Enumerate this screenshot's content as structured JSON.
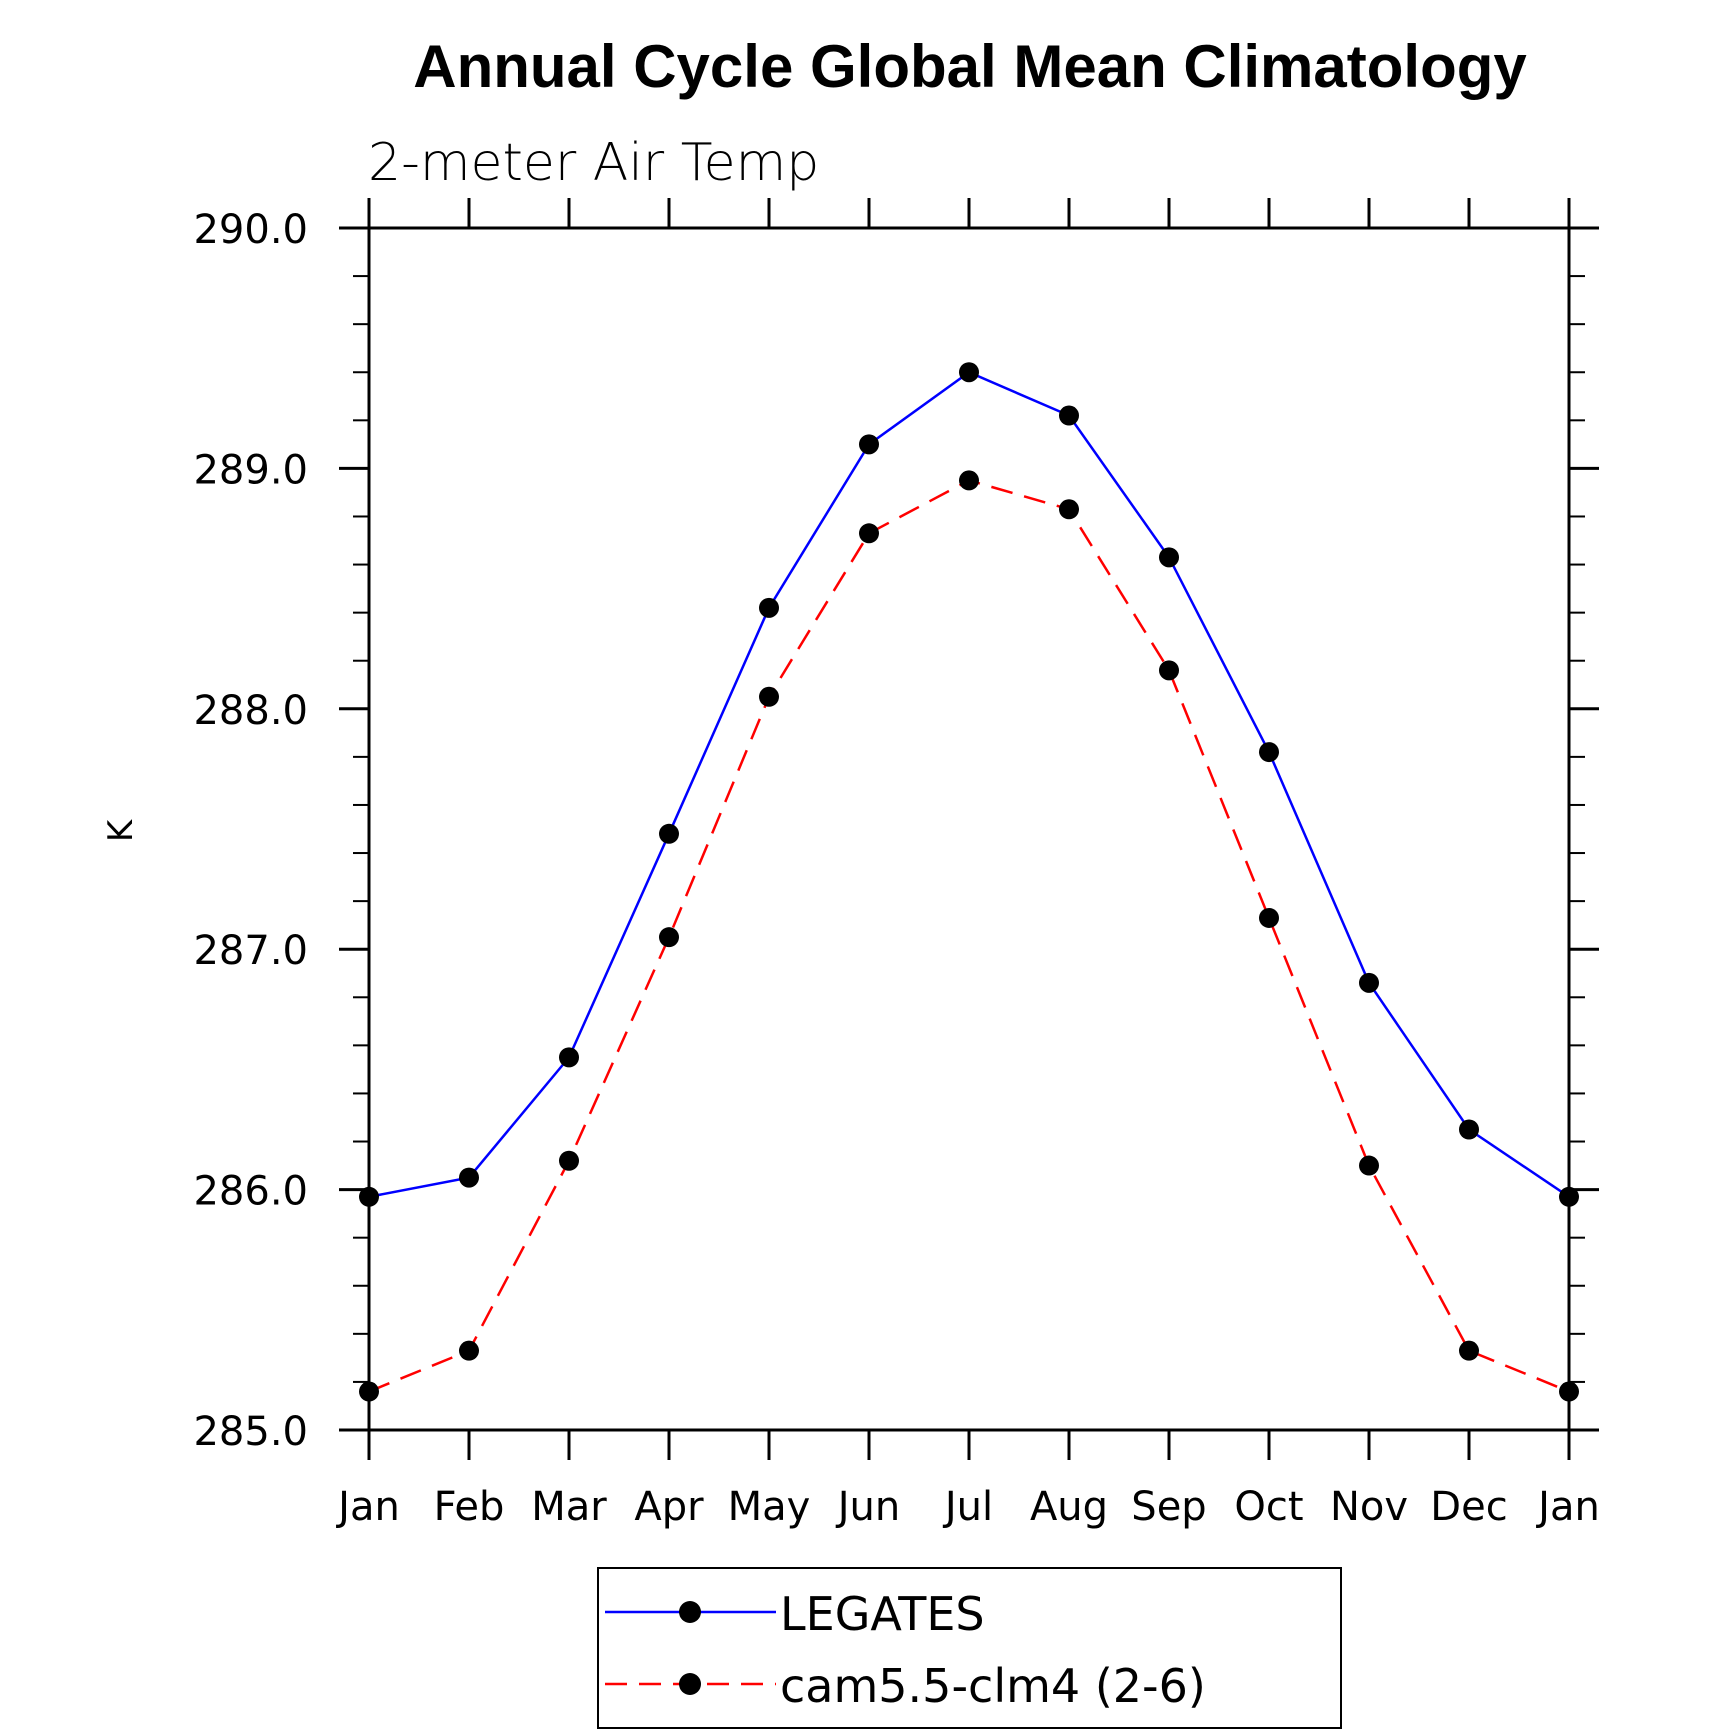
{
  "chart_data": {
    "type": "line",
    "title": "Annual Cycle Global Mean Climatology",
    "subtitle": "2-meter Air Temp",
    "xlabel": "",
    "ylabel": "K",
    "categories": [
      "Jan",
      "Feb",
      "Mar",
      "Apr",
      "May",
      "Jun",
      "Jul",
      "Aug",
      "Sep",
      "Oct",
      "Nov",
      "Dec",
      "Jan"
    ],
    "ylim": [
      285.0,
      290.0
    ],
    "yticks": [
      "285.0",
      "286.0",
      "287.0",
      "288.0",
      "289.0",
      "290.0"
    ],
    "y_minor_step": 0.2,
    "grid": false,
    "legend_position": "bottom-center",
    "series": [
      {
        "name": "LEGATES",
        "color": "#0000ff",
        "line_style": "solid",
        "marker": "filled-circle",
        "values": [
          285.97,
          286.05,
          286.55,
          287.48,
          288.42,
          289.1,
          289.4,
          289.22,
          288.63,
          287.82,
          286.86,
          286.25,
          285.97
        ]
      },
      {
        "name": "cam5.5-clm4 (2-6)",
        "color": "#ff0000",
        "line_style": "dashed",
        "marker": "filled-circle",
        "values": [
          285.16,
          285.33,
          286.12,
          287.05,
          288.05,
          288.73,
          288.95,
          288.83,
          288.16,
          287.13,
          286.1,
          285.33,
          285.16
        ]
      }
    ]
  }
}
